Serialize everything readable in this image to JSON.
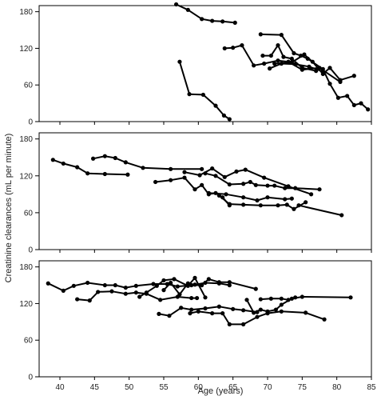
{
  "chart_data": {
    "type": "line",
    "xlabel": "Age (years)",
    "ylabel": "Creatinine clearances (mL per minute)",
    "xlim": [
      37,
      85
    ],
    "ylim": [
      0,
      190
    ],
    "x_ticks": [
      40,
      45,
      50,
      55,
      60,
      65,
      70,
      75,
      80,
      85
    ],
    "y_ticks": [
      0,
      60,
      120,
      180
    ],
    "grid": false,
    "line_color": "#000000",
    "panels": [
      {
        "series": [
          {
            "x": [
              56.8,
              58.5,
              60.5,
              62.0,
              63.5,
              65.3
            ],
            "y": [
              192,
              183,
              168,
              165,
              164,
              162
            ]
          },
          {
            "x": [
              57.3,
              58.7,
              60.7,
              62.5,
              63.7,
              64.5
            ],
            "y": [
              98,
              45,
              44,
              26,
              10,
              4
            ]
          },
          {
            "x": [
              63.8,
              65.0,
              66.3,
              68.0,
              69.5,
              71.5,
              73.0,
              75.0,
              77.5,
              80.5
            ],
            "y": [
              120,
              121,
              125,
              92,
              95,
              100,
              98,
              85,
              88,
              65
            ]
          },
          {
            "x": [
              69.0,
              72.0,
              73.8,
              74.8,
              75.8,
              78.0,
              79.0,
              80.2,
              81.5,
              82.5,
              83.5,
              84.5
            ],
            "y": [
              143,
              142,
              112,
              108,
              103,
              86,
              62,
              39,
              42,
              27,
              30,
              20
            ]
          },
          {
            "x": [
              69.3,
              70.5,
              71.5,
              72.3,
              73.5,
              75.0,
              77.0
            ],
            "y": [
              108,
              108,
              125,
              106,
              103,
              88,
              83
            ]
          },
          {
            "x": [
              70.3,
              72.0,
              74.0,
              76.0,
              78.0
            ],
            "y": [
              87,
              95,
              94,
              90,
              82
            ]
          },
          {
            "x": [
              71.0,
              73.5,
              75.3,
              76.5,
              78.0,
              79.0,
              80.5,
              82.5
            ],
            "y": [
              95,
              97,
              110,
              98,
              78,
              88,
              68,
              75
            ]
          }
        ]
      },
      {
        "series": [
          {
            "x": [
              39.0,
              40.5,
              42.5,
              44.0,
              46.5,
              49.8
            ],
            "y": [
              146,
              140,
              134,
              124,
              123,
              122
            ]
          },
          {
            "x": [
              44.8,
              46.5,
              48.0,
              49.5,
              52.0,
              56.0,
              60.5
            ],
            "y": [
              148,
              152,
              149,
              142,
              133,
              131,
              131
            ]
          },
          {
            "x": [
              53.8,
              56.0,
              58.0,
              59.5,
              60.5,
              61.5,
              62.5,
              63.5,
              64.5
            ],
            "y": [
              110,
              113,
              117,
              98,
              105,
              90,
              92,
              85,
              72
            ]
          },
          {
            "x": [
              58.0,
              60.2,
              62.0,
              63.8,
              65.5,
              66.8,
              69.5,
              73.0,
              76.3
            ],
            "y": [
              126,
              121,
              132,
              118,
              127,
              130,
              117,
              103,
              90
            ]
          },
          {
            "x": [
              61.0,
              62.5,
              64.5,
              66.5,
              67.5,
              68.3,
              70.0,
              71.0,
              72.5,
              74.0,
              77.5
            ],
            "y": [
              124,
              120,
              106,
              107,
              110,
              105,
              104,
              104,
              100,
              100,
              98
            ]
          },
          {
            "x": [
              61.5,
              64.0,
              66.5,
              68.5,
              70.0,
              72.5,
              73.5
            ],
            "y": [
              92,
              90,
              85,
              80,
              85,
              82,
              83
            ]
          },
          {
            "x": [
              63.0,
              64.5,
              66.5,
              69.0,
              71.5,
              72.8,
              73.8,
              75.5
            ],
            "y": [
              88,
              74,
              73,
              72,
              72,
              73,
              66,
              77
            ]
          },
          {
            "x": [
              74.5,
              80.7
            ],
            "y": [
              72,
              56
            ]
          }
        ]
      },
      {
        "series": [
          {
            "x": [
              38.3,
              40.5,
              42.0,
              44.0,
              46.5,
              48.0,
              49.5,
              51.0,
              53.5,
              55.5,
              57.0,
              59.0,
              60.5,
              61.5,
              63.0,
              64.5,
              68.3
            ],
            "y": [
              153,
              141,
              149,
              154,
              150,
              150,
              146,
              149,
              152,
              152,
              148,
              150,
              150,
              160,
              155,
              155,
              144
            ]
          },
          {
            "x": [
              42.5,
              44.3,
              45.5,
              47.5,
              49.5,
              51.0,
              52.5,
              54.5,
              57.0,
              59.0,
              59.8
            ],
            "y": [
              127,
              125,
              139,
              140,
              136,
              138,
              136,
              126,
              131,
              129,
              129
            ]
          },
          {
            "x": [
              51.5,
              52.5,
              54.0,
              55.0,
              56.5,
              58.5,
              59.5,
              61.0
            ],
            "y": [
              131,
              138,
              149,
              158,
              160,
              149,
              162,
              130
            ]
          },
          {
            "x": [
              55.0,
              56.0,
              57.3,
              58.5,
              59.5,
              61.0,
              63.0,
              64.5
            ],
            "y": [
              142,
              154,
              135,
              153,
              151,
              154,
              153,
              150
            ]
          },
          {
            "x": [
              54.3,
              55.8,
              57.5,
              59.0,
              61.0,
              63.0,
              65.0,
              66.5,
              68.5
            ],
            "y": [
              103,
              100,
              113,
              110,
              112,
              115,
              111,
              109,
              106
            ]
          },
          {
            "x": [
              58.8,
              60.0,
              62.0,
              63.5,
              64.5,
              66.5,
              68.5,
              70.0,
              72.0,
              75.5,
              78.2
            ],
            "y": [
              104,
              107,
              104,
              104,
              86,
              86,
              98,
              104,
              107,
              105,
              94
            ]
          },
          {
            "x": [
              67.0,
              68.0,
              69.0,
              70.0,
              71.2,
              72.0,
              73.5,
              75.0,
              82.0
            ],
            "y": [
              126,
              105,
              110,
              107,
              110,
              118,
              128,
              131,
              130
            ]
          },
          {
            "x": [
              69.0,
              70.5,
              72.0,
              73.0,
              74.0
            ],
            "y": [
              127,
              128,
              128,
              126,
              130
            ]
          }
        ]
      }
    ]
  }
}
